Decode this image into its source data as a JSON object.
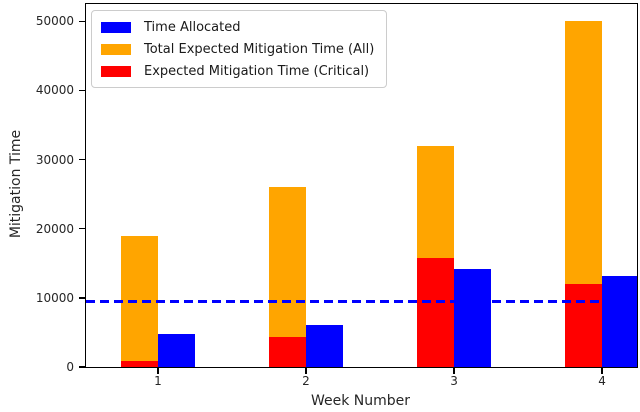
{
  "chart_data": {
    "type": "bar",
    "title": "",
    "xlabel": "Week Number",
    "ylabel": "Mitigation Time",
    "categories": [
      1,
      2,
      3,
      4
    ],
    "series": [
      {
        "name": "Time Allocated",
        "color": "#0000ff",
        "slot": "right",
        "values": [
          4800,
          6100,
          14200,
          13200
        ]
      },
      {
        "name": "Total Expected Mitigation Time (All)",
        "color": "#ffa500",
        "slot": "left-back",
        "values": [
          19000,
          26000,
          32000,
          50000
        ]
      },
      {
        "name": "Expected Mitigation Time (Critical)",
        "color": "#ff0000",
        "slot": "left-front",
        "values": [
          900,
          4400,
          15700,
          12000
        ]
      }
    ],
    "threshold_line": {
      "value": 9500,
      "color": "#0000ff",
      "style": "dashed"
    },
    "yticks": [
      0,
      10000,
      20000,
      30000,
      40000,
      50000
    ],
    "ylim": [
      0,
      52500
    ],
    "xlim": [
      0.514,
      4.236
    ],
    "bar_width_data": 0.25,
    "grid": false,
    "legend_position": "upper left"
  }
}
